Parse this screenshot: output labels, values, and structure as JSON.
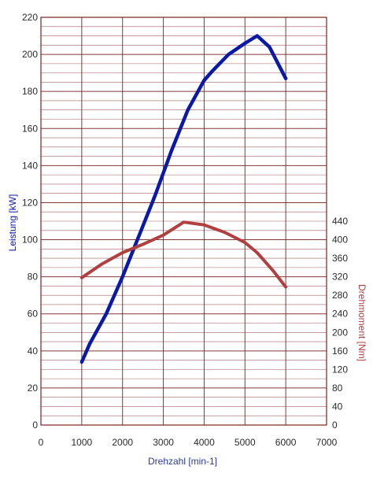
{
  "chart_data": {
    "type": "line",
    "title": "",
    "xlabel": "Drehzahl [min-1]",
    "ylabel_left": "Leistung [kW]",
    "ylabel_right": "Drehmoment [Nm]",
    "xlim": [
      0,
      7000
    ],
    "ylim_left": [
      0,
      220
    ],
    "ylim_right": [
      0,
      440
    ],
    "x_ticks": [
      "0",
      "1000",
      "2000",
      "3000",
      "4000",
      "5000",
      "6000",
      "7000"
    ],
    "y_left_ticks": [
      "0",
      "20",
      "40",
      "60",
      "80",
      "100",
      "120",
      "140",
      "160",
      "180",
      "200",
      "220"
    ],
    "y_right_ticks": [
      "0",
      "40",
      "80",
      "120",
      "160",
      "200",
      "240",
      "280",
      "320",
      "360",
      "400",
      "440"
    ],
    "grid": true,
    "colors": {
      "grid": "#7a2222",
      "power": "#0a1aa6",
      "torque": "#b04040",
      "left_label": "#0a1aa6",
      "right_label": "#b04040"
    },
    "series": [
      {
        "axis": "left",
        "x": [
          1000,
          1200,
          1600,
          2000,
          2400,
          2800,
          3200,
          3600,
          4000,
          4200,
          4600,
          5000,
          5300,
          5600,
          6000
        ],
        "values": [
          34,
          44,
          60,
          80,
          102,
          124,
          148,
          170,
          186,
          191,
          200,
          206,
          210,
          204,
          187
        ]
      },
      {
        "axis": "right",
        "x": [
          1000,
          1500,
          2000,
          2500,
          3000,
          3500,
          4000,
          4500,
          5000,
          5300,
          5700,
          6000
        ],
        "values": [
          318,
          348,
          372,
          390,
          410,
          438,
          432,
          416,
          394,
          372,
          332,
          298
        ]
      }
    ]
  }
}
